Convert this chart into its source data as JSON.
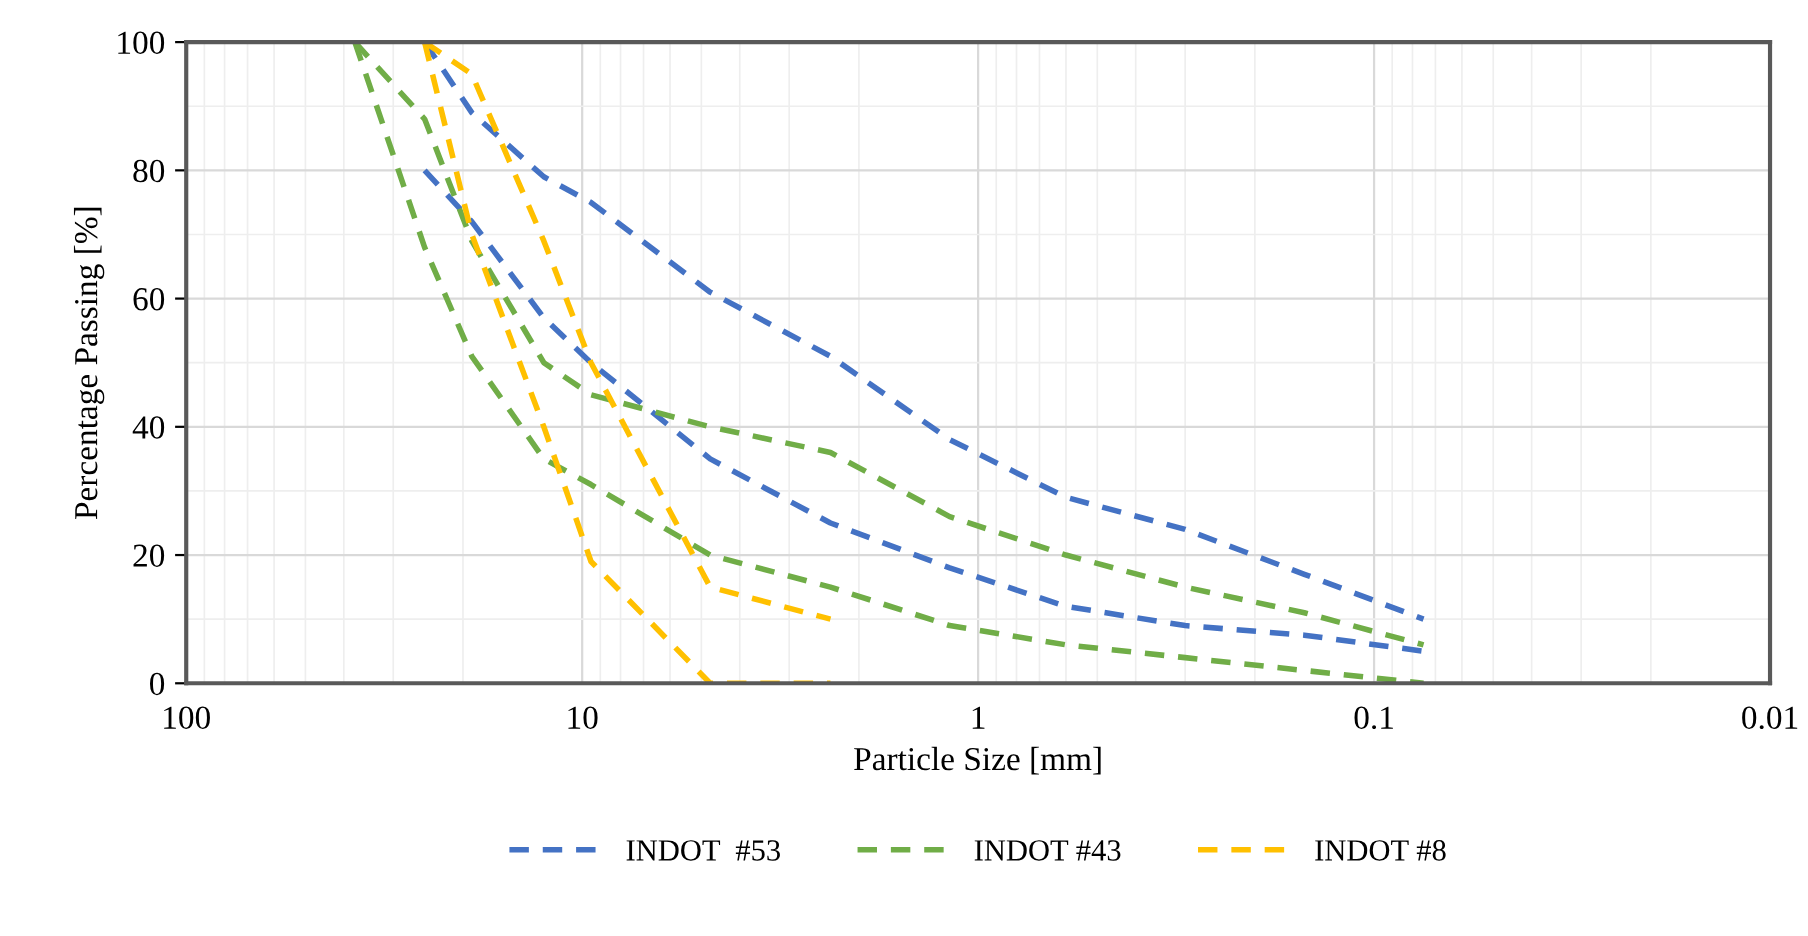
{
  "chart_data": {
    "type": "line",
    "xlabel": "Particle Size [mm]",
    "ylabel": "Percentage Passing [%]",
    "log": "x",
    "xlim": [
      100,
      0.01
    ],
    "xticks": [
      100,
      10,
      1,
      0.1,
      0.01
    ],
    "ylim": [
      0,
      100
    ],
    "yticks": [
      0,
      20,
      40,
      60,
      80,
      100
    ],
    "grid": true,
    "legend": "bottom",
    "marker": "none",
    "line_style": "dashed",
    "series": [
      {
        "name": "INDOT  #53",
        "color": "#4472c4",
        "x": [
          25,
          19,
          12.5,
          9.5,
          4.75,
          2.36,
          1.18,
          0.6,
          0.3,
          0.15,
          0.075
        ],
        "values": [
          100,
          89,
          79,
          75,
          61,
          51,
          38,
          29,
          24,
          17,
          10
        ]
      },
      {
        "color": "#4472c4",
        "x": [
          25,
          19,
          12.5,
          9.5,
          4.75,
          2.36,
          1.18,
          0.6,
          0.3,
          0.15,
          0.075
        ],
        "values": [
          80,
          72,
          57,
          50,
          35,
          25,
          18,
          12,
          9,
          7.5,
          5
        ]
      },
      {
        "name": "INDOT #43",
        "color": "#70ad47",
        "x": [
          37.5,
          25,
          19,
          12.5,
          9.5,
          4.75,
          2.36,
          1.18,
          0.6,
          0.3,
          0.15,
          0.075
        ],
        "values": [
          100,
          88,
          69,
          50,
          45,
          40,
          36,
          26,
          20,
          15,
          11,
          6
        ]
      },
      {
        "color": "#70ad47",
        "x": [
          37.5,
          25,
          19,
          12.5,
          9.5,
          4.75,
          2.36,
          1.18,
          0.6,
          0.3,
          0.15,
          0.075
        ],
        "values": [
          100,
          68,
          51,
          35,
          31,
          20,
          15,
          9,
          6,
          4,
          2,
          0
        ]
      },
      {
        "name": "INDOT #8",
        "color": "#ffc000",
        "x": [
          25,
          19,
          12.5,
          9.5,
          4.75,
          2.36
        ],
        "values": [
          100,
          95,
          69,
          50,
          15,
          10
        ]
      },
      {
        "color": "#ffc000",
        "x": [
          25,
          19,
          12.5,
          9.5,
          4.75,
          2.36
        ],
        "values": [
          100,
          70,
          40,
          19,
          0,
          0
        ]
      }
    ]
  }
}
